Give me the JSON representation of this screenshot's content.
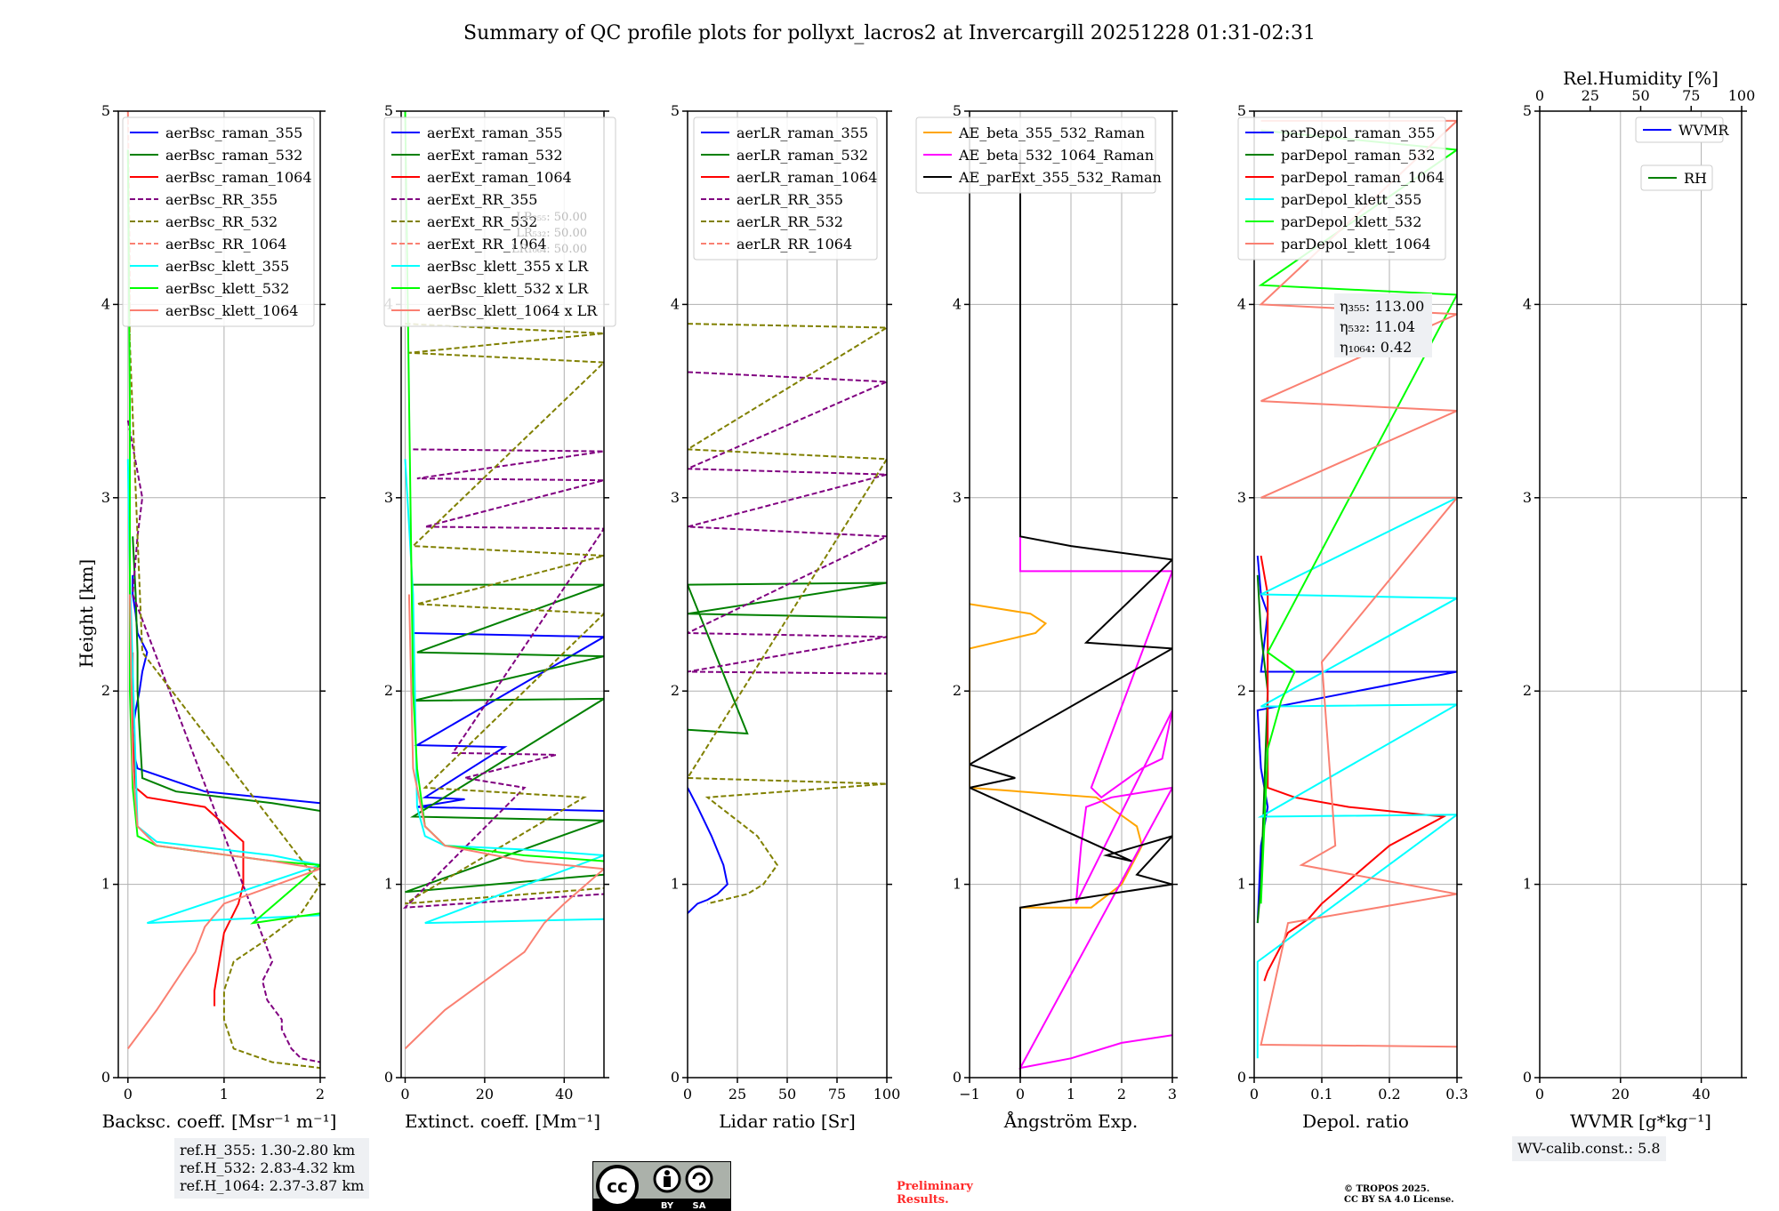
{
  "title": "Summary of QC profile plots for pollyxt_lacros2 at Invercargill 20251228 01:31-02:31",
  "colors": {
    "blue": "#0000ff",
    "green": "#008000",
    "red": "#ff0000",
    "purple": "#800080",
    "olive": "#808000",
    "salmon": "#fa8072",
    "cyan": "#00ffff",
    "lime": "#00ff00",
    "orange": "#ffa500",
    "magenta": "#ff00ff",
    "black": "#000000"
  },
  "chart_data": [
    {
      "type": "line",
      "xlabel": "Backsc. coeff. [Msr⁻¹ m⁻¹]",
      "ylabel": "Height [km]",
      "xlim": [
        -0.1,
        2
      ],
      "ylim": [
        0,
        5
      ],
      "xticks": [
        0,
        1,
        2
      ],
      "yticks": [
        0,
        1,
        2,
        3,
        4,
        5
      ],
      "legend": "top-right",
      "series": [
        {
          "name": "aerBsc_raman_355",
          "color": "blue",
          "dash": false,
          "x": [
            0.05,
            0.05,
            0.08,
            0.1,
            0.15,
            0.2,
            0.15,
            0.12,
            0.08,
            0.05,
            0.05,
            0.1,
            0.8,
            2
          ],
          "y": [
            2.6,
            2.5,
            2.4,
            2.3,
            2.25,
            2.2,
            2.1,
            2.0,
            1.9,
            1.8,
            1.7,
            1.6,
            1.48,
            1.42
          ]
        },
        {
          "name": "aerBsc_raman_532",
          "color": "green",
          "dash": false,
          "x": [
            0.05,
            0.08,
            0.1,
            0.1,
            0.12,
            0.15,
            0.5,
            1.5,
            2
          ],
          "y": [
            2.8,
            2.5,
            2.2,
            2.0,
            1.8,
            1.55,
            1.48,
            1.42,
            1.38
          ]
        },
        {
          "name": "aerBsc_raman_1064",
          "color": "red",
          "dash": false,
          "x": [
            0.05,
            0.05,
            0.08,
            0.2,
            0.8,
            1.2,
            1.2,
            1.15,
            1.0,
            0.95,
            0.9,
            0.9
          ],
          "y": [
            2.2,
            1.8,
            1.5,
            1.45,
            1.4,
            1.22,
            1.0,
            0.9,
            0.75,
            0.6,
            0.45,
            0.37
          ]
        },
        {
          "name": "aerBsc_RR_355",
          "color": "purple",
          "dash": true,
          "x": [
            0.0,
            0.15,
            0.1,
            0.05,
            1.5,
            1.4,
            1.45,
            1.6,
            1.6,
            1.7,
            1.8,
            2.0
          ],
          "y": [
            3.4,
            3.0,
            2.8,
            2.5,
            0.6,
            0.5,
            0.4,
            0.3,
            0.25,
            0.15,
            0.1,
            0.08
          ]
        },
        {
          "name": "aerBsc_RR_532",
          "color": "olive",
          "dash": true,
          "x": [
            0.0,
            0.02,
            0.1,
            0.15,
            2.0,
            1.8,
            1.4,
            1.1,
            1.0,
            1.0,
            1.1,
            1.5,
            2.0
          ],
          "y": [
            4.8,
            3.8,
            2.8,
            2.2,
            1.0,
            0.85,
            0.7,
            0.6,
            0.45,
            0.3,
            0.15,
            0.08,
            0.05
          ]
        },
        {
          "name": "aerBsc_RR_1064",
          "color": "salmon",
          "dash": true,
          "x": [
            0.0,
            0.02,
            0.02
          ],
          "y": [
            5.0,
            4.2,
            3.8
          ]
        },
        {
          "name": "aerBsc_klett_355",
          "color": "cyan",
          "dash": false,
          "x": [
            0.0,
            0.02,
            0.1,
            0.3,
            1.5,
            2.0,
            0.2,
            2.0
          ],
          "y": [
            3.2,
            2.6,
            1.3,
            1.22,
            1.15,
            1.1,
            0.8,
            0.84
          ]
        },
        {
          "name": "aerBsc_klett_532",
          "color": "lime",
          "dash": false,
          "x": [
            0.0,
            0.02,
            0.02,
            0.05,
            0.1,
            0.3,
            1.5,
            2.0,
            1.3,
            2.0
          ],
          "y": [
            4.8,
            3.5,
            2.0,
            1.5,
            1.25,
            1.2,
            1.12,
            1.1,
            0.8,
            0.85
          ]
        },
        {
          "name": "aerBsc_klett_1064",
          "color": "salmon",
          "dash": false,
          "x": [
            0.02,
            0.05,
            0.1,
            0.3,
            1.5,
            2.0,
            1.0,
            0.8,
            0.7,
            0.5,
            0.3,
            0.0
          ],
          "y": [
            2.5,
            1.6,
            1.3,
            1.2,
            1.12,
            1.08,
            0.9,
            0.78,
            0.65,
            0.5,
            0.35,
            0.15
          ]
        }
      ],
      "annotations": [
        "ref.H_355: 1.30-2.80 km",
        "ref.H_532: 2.83-4.32 km",
        "ref.H_1064: 2.37-3.87 km"
      ]
    },
    {
      "type": "line",
      "xlabel": "Extinct. coeff. [Mm⁻¹]",
      "xlim": [
        -1,
        50
      ],
      "ylim": [
        0,
        5
      ],
      "xticks": [
        0,
        20,
        40
      ],
      "yticks": [
        0,
        1,
        2,
        3,
        4,
        5
      ],
      "legend": "top-right",
      "series": [
        {
          "name": "aerExt_raman_355",
          "color": "blue",
          "dash": false,
          "x": [
            2,
            50,
            3,
            25,
            5,
            15,
            3,
            50
          ],
          "y": [
            2.3,
            2.28,
            1.72,
            1.71,
            1.45,
            1.44,
            1.4,
            1.38
          ]
        },
        {
          "name": "aerExt_raman_532",
          "color": "green",
          "dash": false,
          "x": [
            2,
            50,
            3,
            50,
            2,
            50,
            2,
            50,
            0,
            50
          ],
          "y": [
            2.55,
            2.55,
            2.2,
            2.18,
            1.95,
            1.96,
            1.35,
            1.33,
            0.96,
            1.05
          ]
        },
        {
          "name": "aerExt_raman_1064",
          "color": "red",
          "dash": false,
          "x": [],
          "y": []
        },
        {
          "name": "aerExt_RR_355",
          "color": "purple",
          "dash": true,
          "x": [
            2,
            50,
            3,
            50,
            5,
            50,
            12,
            38,
            15,
            30,
            0,
            50
          ],
          "y": [
            3.25,
            3.24,
            3.1,
            3.09,
            2.85,
            2.84,
            1.68,
            1.67,
            1.55,
            1.5,
            0.88,
            0.95
          ]
        },
        {
          "name": "aerExt_RR_532",
          "color": "olive",
          "dash": true,
          "x": [
            0,
            50,
            1,
            50,
            2,
            50,
            3,
            50,
            5,
            45,
            0,
            50
          ],
          "y": [
            3.9,
            3.85,
            3.75,
            3.7,
            2.75,
            2.7,
            2.45,
            2.4,
            1.5,
            1.45,
            0.9,
            0.98
          ]
        },
        {
          "name": "aerExt_RR_1064",
          "color": "salmon",
          "dash": true,
          "x": [],
          "y": []
        },
        {
          "name": "aerBsc_klett_355 x LR",
          "color": "cyan",
          "dash": false,
          "x": [
            0,
            2,
            3,
            5,
            10,
            30,
            50,
            5,
            50
          ],
          "y": [
            3.2,
            2.5,
            1.4,
            1.25,
            1.2,
            1.18,
            1.15,
            0.8,
            0.82
          ]
        },
        {
          "name": "aerBsc_klett_532 x LR",
          "color": "lime",
          "dash": false,
          "x": [
            0,
            1,
            2,
            3,
            5,
            10,
            30,
            50
          ],
          "y": [
            5.0,
            3.5,
            2.0,
            1.6,
            1.3,
            1.2,
            1.15,
            1.12
          ]
        },
        {
          "name": "aerBsc_klett_1064 x LR",
          "color": "salmon",
          "dash": false,
          "x": [
            1,
            2,
            5,
            10,
            30,
            50,
            40,
            35,
            30,
            20,
            10,
            0
          ],
          "y": [
            2.5,
            1.6,
            1.3,
            1.2,
            1.12,
            1.08,
            0.9,
            0.8,
            0.65,
            0.5,
            0.35,
            0.15
          ]
        }
      ],
      "overlapped_note": [
        "LR₃₅₅: 50.00",
        "LR₅₃₂: 50.00",
        "LR₁₀₆₄: 50.00"
      ]
    },
    {
      "type": "line",
      "xlabel": "Lidar ratio [Sr]",
      "xlim": [
        0,
        100
      ],
      "ylim": [
        0,
        5
      ],
      "xticks": [
        0,
        25,
        50,
        75,
        100
      ],
      "yticks": [
        0,
        1,
        2,
        3,
        4,
        5
      ],
      "legend": "top-left",
      "series": [
        {
          "name": "aerLR_raman_355",
          "color": "blue",
          "dash": false,
          "x": [
            0,
            5,
            12,
            18,
            20,
            15,
            10,
            5,
            0
          ],
          "y": [
            1.5,
            1.4,
            1.25,
            1.1,
            1.0,
            0.95,
            0.92,
            0.9,
            0.85
          ]
        },
        {
          "name": "aerLR_raman_532",
          "color": "green",
          "dash": false,
          "x": [
            0,
            30,
            0,
            100,
            0,
            100
          ],
          "y": [
            1.8,
            1.78,
            2.55,
            2.56,
            2.4,
            2.38
          ]
        },
        {
          "name": "aerLR_raman_1064",
          "color": "red",
          "dash": false,
          "x": [],
          "y": []
        },
        {
          "name": "aerLR_RR_355",
          "color": "purple",
          "dash": true,
          "x": [
            0,
            100,
            0,
            100,
            0,
            100,
            0,
            100,
            0,
            100
          ],
          "y": [
            3.65,
            3.6,
            3.15,
            3.12,
            2.85,
            2.8,
            2.3,
            2.28,
            2.1,
            2.09
          ]
        },
        {
          "name": "aerLR_RR_532",
          "color": "olive",
          "dash": true,
          "x": [
            0,
            100,
            0,
            100,
            0,
            100,
            10,
            35,
            45,
            38,
            30,
            10
          ],
          "y": [
            3.9,
            3.88,
            3.25,
            3.2,
            1.55,
            1.52,
            1.45,
            1.25,
            1.1,
            1.0,
            0.95,
            0.9
          ]
        },
        {
          "name": "aerLR_RR_1064",
          "color": "salmon",
          "dash": true,
          "x": [],
          "y": []
        }
      ]
    },
    {
      "type": "line",
      "xlabel": "Ångström Exp.",
      "xlim": [
        -1,
        3
      ],
      "ylim": [
        0,
        5
      ],
      "xticks": [
        -1,
        0,
        1,
        2,
        3
      ],
      "yticks": [
        0,
        1,
        2,
        3,
        4,
        5
      ],
      "legend": "top-left",
      "series": [
        {
          "name": "AE_beta_355_532_Raman",
          "color": "orange",
          "dash": false,
          "x": [
            -1,
            0.2,
            0.5,
            0.3,
            -1,
            -1,
            1.5,
            2.3,
            2.4,
            2.0,
            1.4,
            0.0
          ],
          "y": [
            2.45,
            2.4,
            2.35,
            2.3,
            2.22,
            1.5,
            1.45,
            1.3,
            1.2,
            1.0,
            0.88,
            0.88
          ]
        },
        {
          "name": "AE_beta_532_1064_Raman",
          "color": "magenta",
          "dash": false,
          "x": [
            0,
            0,
            3,
            1.4,
            1.6,
            2.4,
            2.8,
            3,
            1.1,
            1.2,
            1.3,
            1.8,
            3,
            0,
            1,
            2,
            3
          ],
          "y": [
            4.8,
            2.62,
            2.62,
            1.5,
            1.45,
            1.6,
            1.65,
            1.9,
            0.9,
            1.2,
            1.4,
            1.45,
            1.5,
            0.05,
            0.1,
            0.18,
            0.22
          ]
        },
        {
          "name": "AE_parExt_355_532_Raman",
          "color": "black",
          "dash": false,
          "x": [
            0,
            0,
            1,
            3,
            1.3,
            3,
            -1,
            -0.1,
            -1,
            2.2,
            1.7,
            3,
            2.3,
            3,
            0,
            0
          ],
          "y": [
            4.8,
            2.8,
            2.75,
            2.68,
            2.25,
            2.22,
            1.62,
            1.55,
            1.5,
            1.12,
            1.15,
            1.25,
            1.05,
            1.0,
            0.88,
            0.0
          ]
        }
      ]
    },
    {
      "type": "line",
      "xlabel": "Depol. ratio",
      "xlim": [
        0,
        0.3
      ],
      "ylim": [
        0,
        5
      ],
      "xticks": [
        0.0,
        0.1,
        0.2,
        0.3
      ],
      "yticks": [
        0,
        1,
        2,
        3,
        4,
        5
      ],
      "legend": "top-left",
      "series": [
        {
          "name": "parDepol_raman_355",
          "color": "blue",
          "dash": false,
          "x": [
            0.005,
            0.01,
            0.02,
            0.01,
            0.3,
            0.005,
            0.01,
            0.02,
            0.01,
            0.005
          ],
          "y": [
            2.7,
            2.5,
            2.4,
            2.1,
            2.1,
            1.9,
            1.6,
            1.4,
            1.2,
            0.8
          ]
        },
        {
          "name": "parDepol_raman_532",
          "color": "green",
          "dash": false,
          "x": [
            0.005,
            0.01,
            0.02,
            0.015,
            0.01,
            0.005
          ],
          "y": [
            2.6,
            2.3,
            2.0,
            1.5,
            1.0,
            0.8
          ]
        },
        {
          "name": "parDepol_raman_1064",
          "color": "red",
          "dash": false,
          "x": [
            0.01,
            0.02,
            0.02,
            0.06,
            0.14,
            0.28,
            0.2,
            0.15,
            0.1,
            0.08,
            0.05,
            0.02,
            0.015
          ],
          "y": [
            2.7,
            2.5,
            1.5,
            1.45,
            1.4,
            1.35,
            1.2,
            1.05,
            0.9,
            0.82,
            0.75,
            0.55,
            0.5
          ]
        },
        {
          "name": "parDepol_klett_355",
          "color": "cyan",
          "dash": false,
          "x": [
            0.01,
            0.3,
            0.01,
            0.3,
            0.01,
            0.3,
            0.01,
            0.3,
            0.005,
            0.005
          ],
          "y": [
            3.0,
            3.0,
            2.5,
            2.48,
            1.92,
            1.93,
            1.35,
            1.36,
            0.6,
            0.1
          ]
        },
        {
          "name": "parDepol_klett_532",
          "color": "lime",
          "dash": false,
          "x": [
            0.01,
            0.3,
            0.01,
            0.3,
            0.02,
            0.06,
            0.04,
            0.02,
            0.015,
            0.01
          ],
          "y": [
            4.9,
            4.8,
            4.1,
            4.05,
            2.2,
            2.1,
            1.95,
            1.7,
            1.3,
            0.9
          ]
        },
        {
          "name": "parDepol_klett_1064",
          "color": "salmon",
          "dash": false,
          "x": [
            0.01,
            0.3,
            0.01,
            0.3,
            0.01,
            0.3,
            0.01,
            0.3,
            0.1,
            0.12,
            0.07,
            0.3,
            0.05,
            0.01,
            0.3
          ],
          "y": [
            4.95,
            4.95,
            4.0,
            3.95,
            3.5,
            3.45,
            3.0,
            3.0,
            2.15,
            1.2,
            1.1,
            0.95,
            0.8,
            0.17,
            0.16
          ]
        }
      ],
      "eta_labels": [
        "η₃₅₅: 113.00",
        "η₅₃₂: 11.04",
        "η₁₀₆₄: 0.42"
      ]
    },
    {
      "type": "line",
      "xlabel": "WVMR [g*kg⁻¹]",
      "x2label": "Rel.Humidity [%]",
      "xlim": [
        0,
        50
      ],
      "x2lim": [
        0,
        100
      ],
      "ylim": [
        0,
        5
      ],
      "xticks": [
        0,
        20,
        40
      ],
      "x2ticks": [
        0,
        25,
        50,
        75,
        100
      ],
      "yticks": [
        0,
        1,
        2,
        3,
        4,
        5
      ],
      "legend": "top-right",
      "series": [
        {
          "name": "WVMR",
          "color": "blue",
          "dash": false,
          "x": [],
          "y": []
        },
        {
          "name": "RH",
          "color": "green",
          "dash": false,
          "x": [],
          "y": []
        }
      ],
      "annotations": [
        "WV-calib.const.: 5.8"
      ]
    }
  ],
  "footer": {
    "preliminary": [
      "Preliminary",
      "Results."
    ],
    "copyright": [
      "© TROPOS 2025.",
      "CC BY SA 4.0 License."
    ],
    "cc_badge": {
      "cc": "cc",
      "by": "BY",
      "sa": "SA"
    }
  }
}
